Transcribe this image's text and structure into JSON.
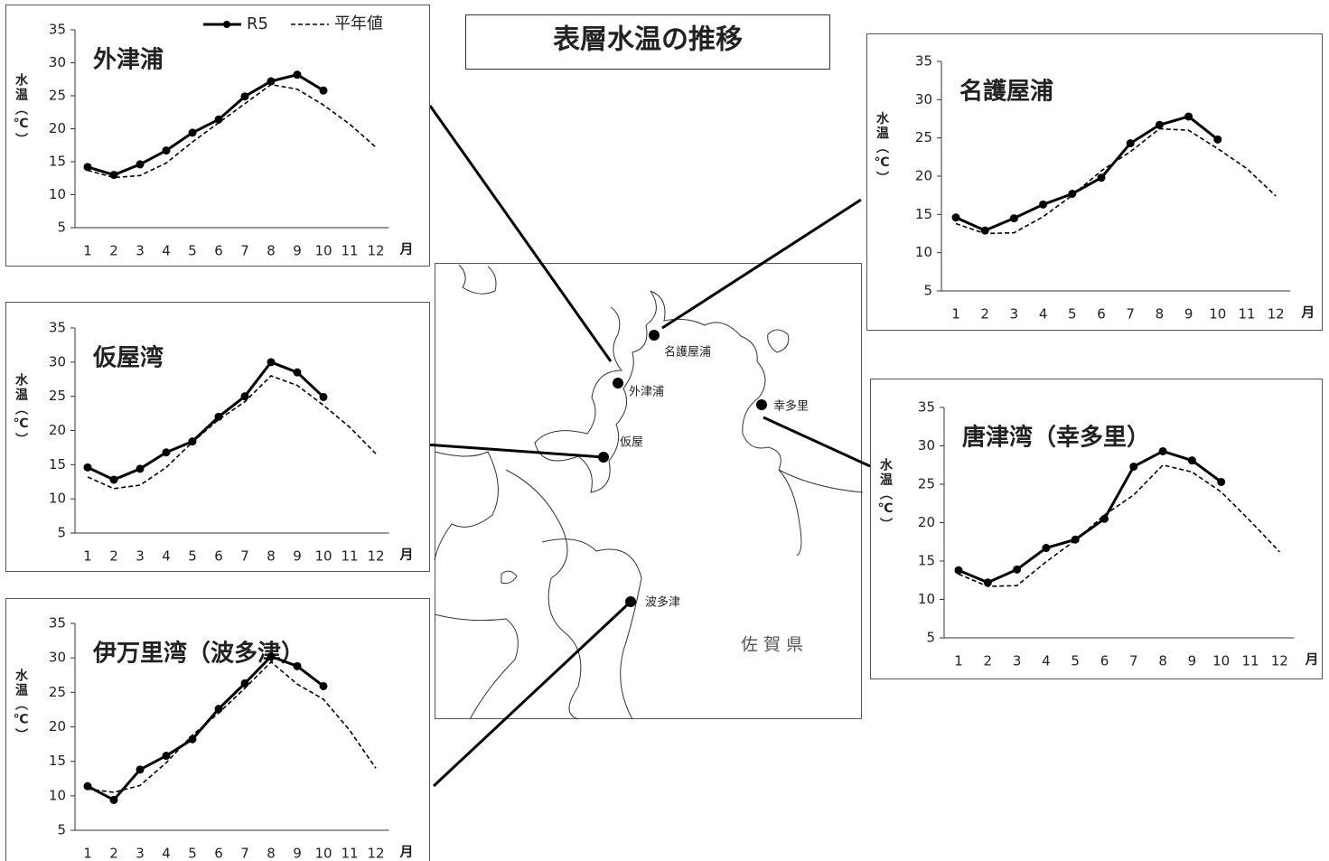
{
  "title": "表層水温の推移",
  "map": {
    "places": [
      "名護屋浦",
      "外津浦",
      "仮屋",
      "幸多里",
      "波多津"
    ],
    "prefecture": "佐 賀 県"
  },
  "chart_data": [
    {
      "type": "line",
      "title": "外津浦",
      "y_label": "水温（℃）",
      "x_label": "月",
      "legend": "top-right",
      "categories": [
        "1",
        "2",
        "3",
        "4",
        "5",
        "6",
        "7",
        "8",
        "9",
        "10",
        "11",
        "12"
      ],
      "ylim": [
        5,
        35
      ],
      "yticks": [
        5,
        10,
        15,
        20,
        25,
        30,
        35
      ],
      "series": [
        {
          "name": "R5",
          "color": "#000000",
          "values": [
            14.2,
            13.0,
            14.6,
            16.7,
            19.4,
            21.4,
            24.9,
            27.2,
            28.2,
            25.8,
            null,
            null
          ]
        },
        {
          "name": "平年値",
          "color": "#000000",
          "values": [
            13.7,
            12.6,
            12.9,
            14.8,
            18.0,
            20.9,
            23.8,
            26.7,
            26.0,
            23.6,
            20.7,
            17.2
          ]
        }
      ]
    },
    {
      "type": "line",
      "title": "仮屋湾",
      "y_label": "水温（℃）",
      "x_label": "月",
      "categories": [
        "1",
        "2",
        "3",
        "4",
        "5",
        "6",
        "7",
        "8",
        "9",
        "10",
        "11",
        "12"
      ],
      "ylim": [
        5,
        35
      ],
      "yticks": [
        5,
        10,
        15,
        20,
        25,
        30,
        35
      ],
      "series": [
        {
          "color": "#000000",
          "values": [
            14.6,
            12.8,
            14.4,
            16.8,
            18.4,
            22.0,
            25.0,
            30.0,
            28.5,
            24.9,
            null,
            null
          ]
        },
        {
          "color": "#000000",
          "values": [
            13.2,
            11.5,
            12.0,
            14.6,
            18.3,
            21.6,
            24.2,
            28.0,
            26.6,
            23.7,
            20.5,
            16.6
          ]
        }
      ]
    },
    {
      "type": "line",
      "title": "伊万里湾（波多津）",
      "y_label": "水温（℃）",
      "x_label": "月",
      "categories": [
        "1",
        "2",
        "3",
        "4",
        "5",
        "6",
        "7",
        "8",
        "9",
        "10",
        "11",
        "12"
      ],
      "ylim": [
        5,
        35
      ],
      "yticks": [
        5,
        10,
        15,
        20,
        25,
        30,
        35
      ],
      "series": [
        {
          "color": "#000000",
          "values": [
            11.4,
            9.4,
            13.8,
            15.8,
            18.2,
            22.6,
            26.3,
            30.2,
            28.8,
            25.9,
            null,
            null
          ]
        },
        {
          "color": "#000000",
          "values": [
            11.0,
            10.5,
            11.5,
            14.8,
            18.8,
            22.0,
            25.6,
            29.4,
            26.2,
            24.0,
            19.5,
            14.0
          ]
        }
      ]
    },
    {
      "type": "line",
      "title": "名護屋浦",
      "y_label": "水温（℃）",
      "x_label": "月",
      "categories": [
        "1",
        "2",
        "3",
        "4",
        "5",
        "6",
        "7",
        "8",
        "9",
        "10",
        "11",
        "12"
      ],
      "ylim": [
        5,
        35
      ],
      "yticks": [
        5,
        10,
        15,
        20,
        25,
        30,
        35
      ],
      "series": [
        {
          "color": "#000000",
          "values": [
            14.6,
            12.9,
            14.5,
            16.3,
            17.7,
            19.8,
            24.3,
            26.7,
            27.8,
            24.8,
            null,
            null
          ]
        },
        {
          "color": "#000000",
          "values": [
            13.8,
            12.5,
            12.6,
            14.7,
            17.5,
            20.7,
            23.2,
            26.2,
            26.0,
            23.6,
            21.0,
            17.4
          ]
        }
      ]
    },
    {
      "type": "line",
      "title": "唐津湾（幸多里）",
      "y_label": "水温（℃）",
      "x_label": "月",
      "categories": [
        "1",
        "2",
        "3",
        "4",
        "5",
        "6",
        "7",
        "8",
        "9",
        "10",
        "11",
        "12"
      ],
      "ylim": [
        5,
        35
      ],
      "yticks": [
        5,
        10,
        15,
        20,
        25,
        30,
        35
      ],
      "series": [
        {
          "color": "#000000",
          "values": [
            13.8,
            12.2,
            13.9,
            16.7,
            17.8,
            20.5,
            27.3,
            29.3,
            28.1,
            25.3,
            null,
            null
          ]
        },
        {
          "color": "#000000",
          "values": [
            13.3,
            11.7,
            11.8,
            14.9,
            17.7,
            21.0,
            23.6,
            27.5,
            26.6,
            24.0,
            20.2,
            16.2
          ]
        }
      ]
    }
  ]
}
